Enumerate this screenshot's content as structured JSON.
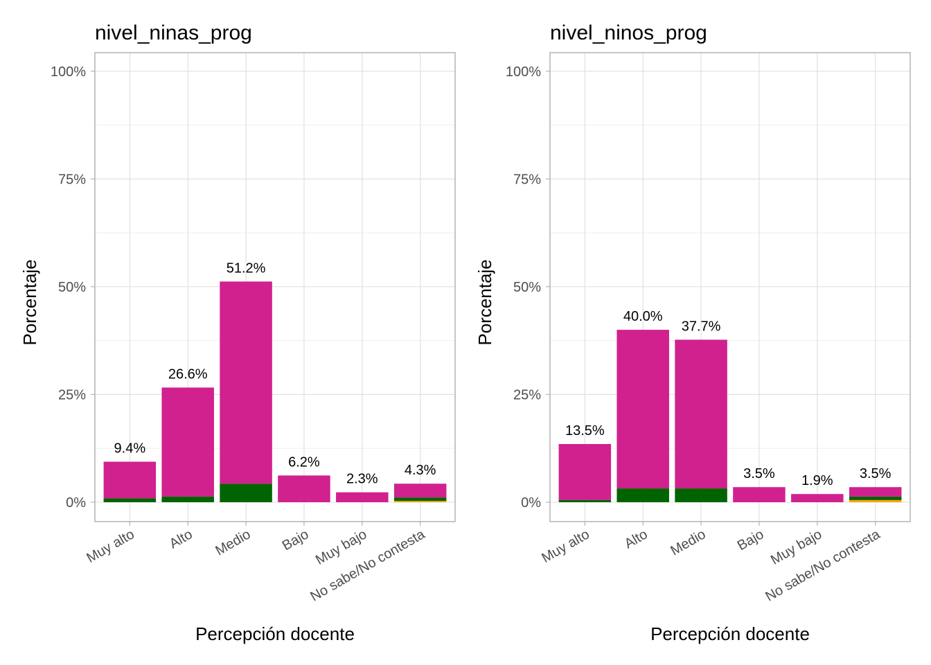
{
  "chart_data": [
    {
      "type": "bar",
      "stacked": true,
      "title": "nivel_ninas_prog",
      "xlabel": "Percepción docente",
      "ylabel": "Porcentaje",
      "categories": [
        "Muy alto",
        "Alto",
        "Medio",
        "Bajo",
        "Muy bajo",
        "No sabe/No contesta"
      ],
      "totals": [
        9.4,
        26.6,
        51.2,
        6.2,
        2.3,
        4.3
      ],
      "bar_labels": [
        "9.4%",
        "26.6%",
        "51.2%",
        "6.2%",
        "2.3%",
        "4.3%"
      ],
      "series": [
        {
          "name": "orange",
          "color": "#FFA500",
          "values": [
            0,
            0,
            0,
            0,
            0,
            0.3
          ]
        },
        {
          "name": "green",
          "color": "#006400",
          "values": [
            0.9,
            1.3,
            4.3,
            0,
            0,
            0.8
          ]
        },
        {
          "name": "magenta",
          "color": "#D0218F",
          "values": [
            8.5,
            25.3,
            46.9,
            6.2,
            2.3,
            3.2
          ]
        }
      ],
      "yticks": [
        0,
        25,
        50,
        75,
        100
      ],
      "ytick_labels": [
        "0%",
        "25%",
        "50%",
        "75%",
        "100%"
      ],
      "ylim": [
        -4.5,
        104.3
      ],
      "grid": true,
      "legend": "none"
    },
    {
      "type": "bar",
      "stacked": true,
      "title": "nivel_ninos_prog",
      "xlabel": "Percepción docente",
      "ylabel": "Porcentaje",
      "categories": [
        "Muy alto",
        "Alto",
        "Medio",
        "Bajo",
        "Muy bajo",
        "No sabe/No contesta"
      ],
      "totals": [
        13.5,
        40.0,
        37.7,
        3.5,
        1.9,
        3.5
      ],
      "bar_labels": [
        "13.5%",
        "40.0%",
        "37.7%",
        "3.5%",
        "1.9%",
        "3.5%"
      ],
      "series": [
        {
          "name": "orange",
          "color": "#FFA500",
          "values": [
            0,
            0,
            0,
            0,
            0,
            0.5
          ]
        },
        {
          "name": "green",
          "color": "#006400",
          "values": [
            0.5,
            3.2,
            3.2,
            0,
            0,
            0.8
          ]
        },
        {
          "name": "magenta",
          "color": "#D0218F",
          "values": [
            13.0,
            36.8,
            34.5,
            3.5,
            1.9,
            2.2
          ]
        }
      ],
      "yticks": [
        0,
        25,
        50,
        75,
        100
      ],
      "ytick_labels": [
        "0%",
        "25%",
        "50%",
        "75%",
        "100%"
      ],
      "ylim": [
        -4.5,
        104.3
      ],
      "grid": true,
      "legend": "none"
    }
  ]
}
